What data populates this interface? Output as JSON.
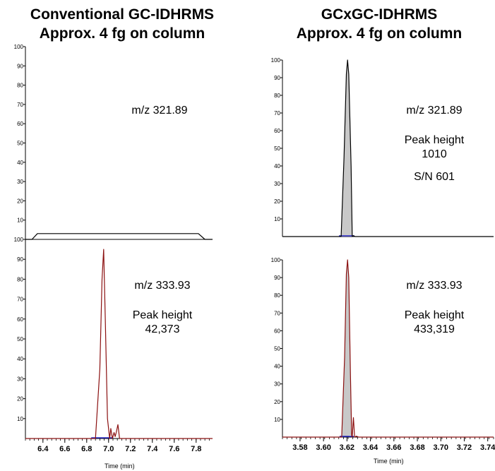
{
  "left_title": {
    "line1": "Conventional GC-IDHRMS",
    "line2": "Approx. 4 fg on column"
  },
  "right_title": {
    "line1": "GCxGC-IDHRMS",
    "line2": "Approx. 4 fg on column"
  },
  "time_axis_label": "Time (min)",
  "colors": {
    "trace_red": "#8b1010",
    "trace_black": "#000000",
    "peak_fill": "#c8c8c8",
    "baseline_marker": "#2020c0"
  },
  "chart_data": [
    {
      "id": "left-top",
      "type": "line",
      "annotations": [
        "m/z 321.89"
      ],
      "color": "#000000",
      "xlim": [
        6.24,
        7.95
      ],
      "ylim": [
        0,
        100
      ],
      "y_ticks": [
        10,
        20,
        30,
        40,
        50,
        60,
        70,
        80,
        90,
        100
      ],
      "x": [
        6.24,
        6.3,
        6.35,
        7.82,
        7.88,
        7.95
      ],
      "y": [
        0,
        0,
        3,
        3,
        0,
        0
      ]
    },
    {
      "id": "left-bottom",
      "type": "line",
      "annotations": [
        "m/z 333.93",
        "Peak height",
        "42,373"
      ],
      "color": "#8b1010",
      "xlim": [
        6.24,
        7.95
      ],
      "ylim": [
        0,
        100
      ],
      "y_ticks": [
        10,
        20,
        30,
        40,
        50,
        60,
        70,
        80,
        90,
        100
      ],
      "x_ticks": [
        "6.4",
        "6.6",
        "6.8",
        "7.0",
        "7.2",
        "7.4",
        "7.6",
        "7.8"
      ],
      "x_tick_values": [
        6.4,
        6.6,
        6.8,
        7.0,
        7.2,
        7.4,
        7.6,
        7.8
      ],
      "x": [
        6.24,
        6.88,
        6.92,
        6.94,
        6.955,
        6.97,
        6.99,
        7.01,
        7.02,
        7.035,
        7.05,
        7.06,
        7.07,
        7.085,
        7.1,
        7.12,
        7.95
      ],
      "y": [
        0,
        0,
        35,
        80,
        95,
        60,
        10,
        0,
        5,
        0,
        3,
        1,
        3,
        7,
        0,
        0,
        0
      ]
    },
    {
      "id": "right-top",
      "type": "line",
      "annotations": [
        "m/z 321.89",
        "Peak height",
        "1010",
        "S/N 601"
      ],
      "color": "#000000",
      "fill": true,
      "xlim": [
        3.565,
        3.745
      ],
      "ylim": [
        0,
        100
      ],
      "y_ticks": [
        10,
        20,
        30,
        40,
        50,
        60,
        70,
        80,
        90,
        100
      ],
      "x": [
        3.565,
        3.615,
        3.6175,
        3.6195,
        3.6205,
        3.6215,
        3.6235,
        3.6245,
        3.6255,
        3.627,
        3.745
      ],
      "y": [
        0,
        0,
        45,
        92,
        100,
        92,
        40,
        0,
        0.5,
        0,
        0
      ]
    },
    {
      "id": "right-bottom",
      "type": "line",
      "annotations": [
        "m/z 333.93",
        "Peak height",
        "433,319"
      ],
      "color": "#8b1010",
      "fill": true,
      "xlim": [
        3.565,
        3.745
      ],
      "ylim": [
        0,
        100
      ],
      "y_ticks": [
        10,
        20,
        30,
        40,
        50,
        60,
        70,
        80,
        90,
        100
      ],
      "x_ticks": [
        "3.58",
        "3.60",
        "3.62",
        "3.64",
        "3.66",
        "3.68",
        "3.70",
        "3.72",
        "3.74"
      ],
      "x_tick_values": [
        3.58,
        3.6,
        3.62,
        3.64,
        3.66,
        3.68,
        3.7,
        3.72,
        3.74
      ],
      "x": [
        3.565,
        3.6155,
        3.618,
        3.6195,
        3.6205,
        3.6215,
        3.623,
        3.624,
        3.6245,
        3.6255,
        3.6265,
        3.628,
        3.63,
        3.745
      ],
      "y": [
        0,
        0,
        45,
        92,
        100,
        90,
        35,
        1,
        0,
        11,
        0,
        0.5,
        0,
        0
      ]
    }
  ]
}
